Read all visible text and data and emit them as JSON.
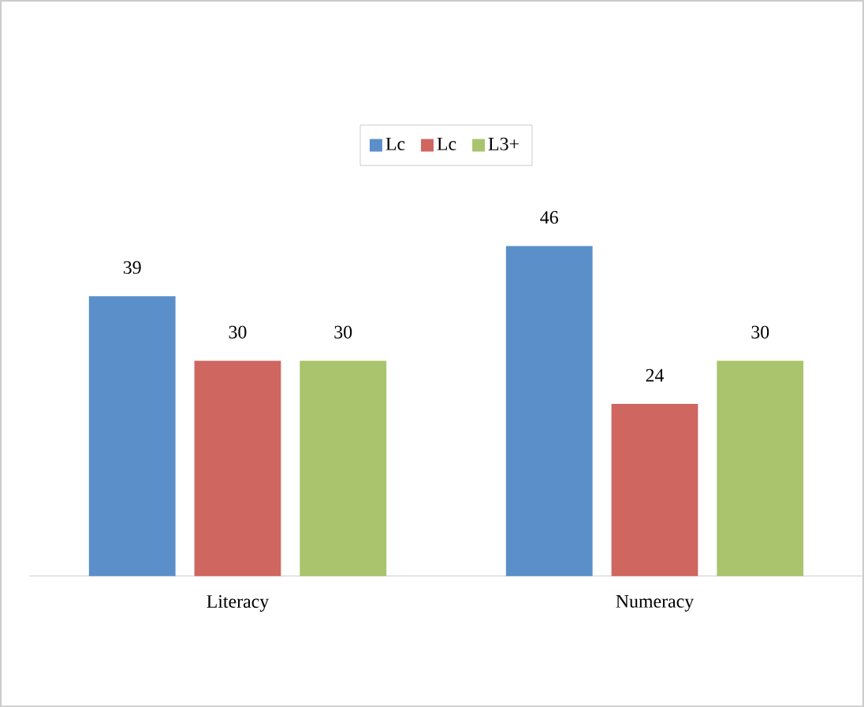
{
  "chart_data": {
    "type": "bar",
    "categories": [
      "Literacy",
      "Numeracy"
    ],
    "series": [
      {
        "name": "Lc",
        "color": "#5b8fc9",
        "values": [
          39,
          46
        ]
      },
      {
        "name": "Lc",
        "color": "#cf6660",
        "values": [
          30,
          24
        ]
      },
      {
        "name": "L3+",
        "color": "#a9c46c",
        "values": [
          30,
          30
        ]
      }
    ],
    "data_labels": true,
    "legend": "top",
    "tick_labels": "x"
  }
}
